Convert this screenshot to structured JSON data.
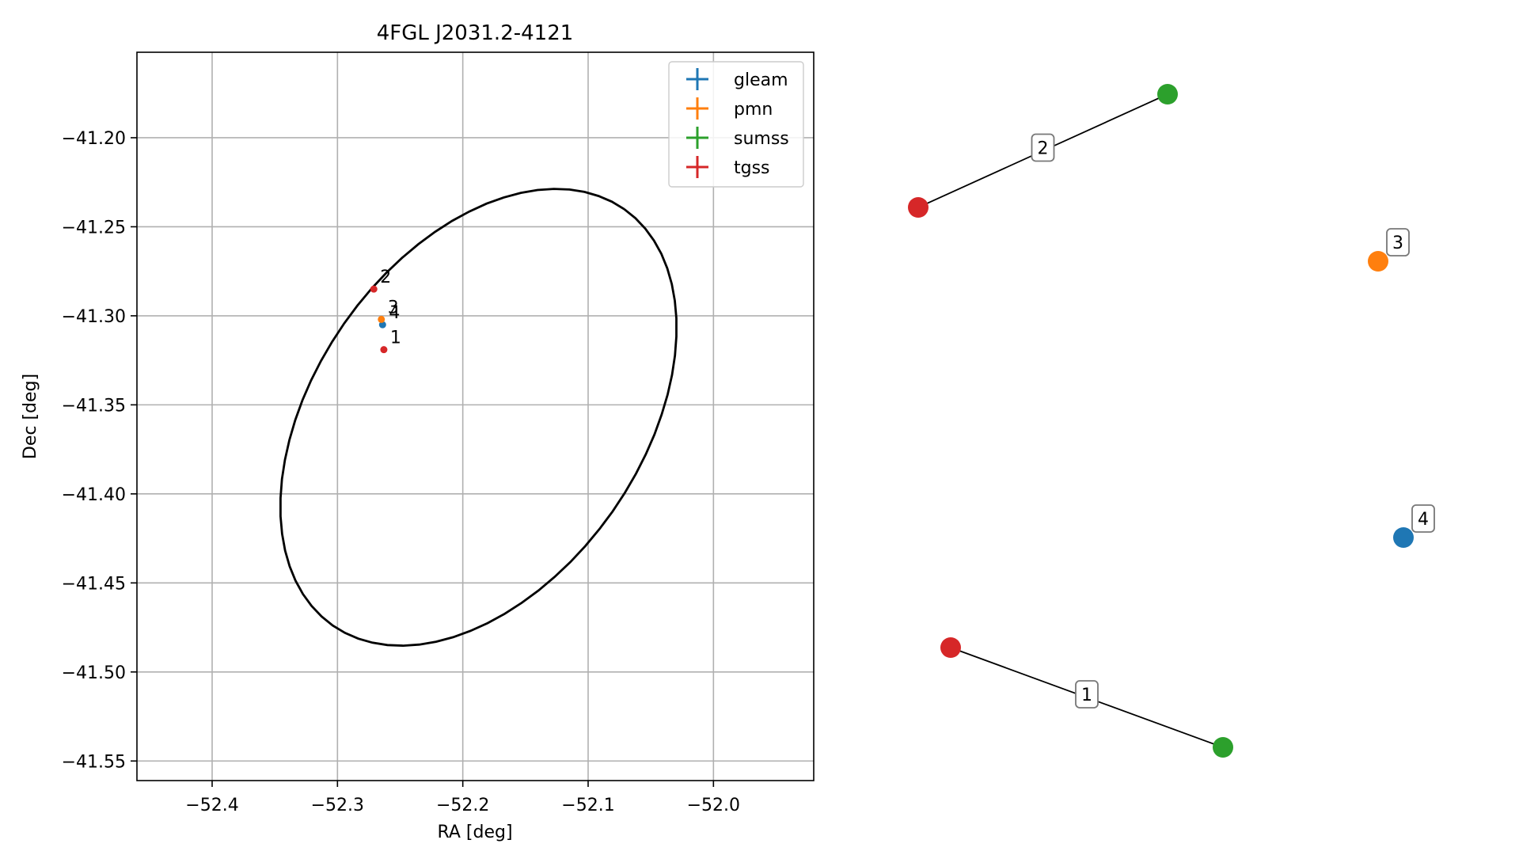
{
  "chart_data": [
    {
      "type": "scatter",
      "title": "4FGL J2031.2-4121",
      "xlabel": "RA [deg]",
      "ylabel": "Dec [deg]",
      "xlim": [
        -52.46,
        -51.92
      ],
      "ylim": [
        -41.561,
        -41.152
      ],
      "xticks": [
        {
          "value": -52.4,
          "label": "−52.4"
        },
        {
          "value": -52.3,
          "label": "−52.3"
        },
        {
          "value": -52.2,
          "label": "−52.2"
        },
        {
          "value": -52.1,
          "label": "−52.1"
        },
        {
          "value": -52.0,
          "label": "−52.0"
        }
      ],
      "yticks": [
        {
          "value": -41.2,
          "label": "−41.20"
        },
        {
          "value": -41.25,
          "label": "−41.25"
        },
        {
          "value": -41.3,
          "label": "−41.30"
        },
        {
          "value": -41.35,
          "label": "−41.35"
        },
        {
          "value": -41.4,
          "label": "−41.40"
        },
        {
          "value": -41.45,
          "label": "−41.45"
        },
        {
          "value": -41.5,
          "label": "−41.50"
        },
        {
          "value": -41.55,
          "label": "−41.55"
        }
      ],
      "grid": true,
      "legend_position": "top-right",
      "series": [
        {
          "name": "gleam",
          "color": "#1f77b4",
          "points": [
            {
              "x": -52.264,
              "y": -41.305
            }
          ]
        },
        {
          "name": "pmn",
          "color": "#ff7f0e",
          "points": [
            {
              "x": -52.265,
              "y": -41.302
            }
          ]
        },
        {
          "name": "sumss",
          "color": "#2ca02c",
          "points": []
        },
        {
          "name": "tgss",
          "color": "#d62728",
          "points": [
            {
              "x": -52.271,
              "y": -41.285
            },
            {
              "x": -52.263,
              "y": -41.319
            }
          ]
        }
      ],
      "point_labels": [
        {
          "text": "1",
          "x": -52.263,
          "y": -41.319
        },
        {
          "text": "2",
          "x": -52.271,
          "y": -41.285
        },
        {
          "text": "3",
          "x": -52.265,
          "y": -41.302
        },
        {
          "text": "4",
          "x": -52.264,
          "y": -41.305
        }
      ],
      "ellipse": {
        "center_ra": -52.1875,
        "center_dec": -41.357,
        "color": "#000000"
      }
    },
    {
      "type": "network",
      "nodes": [
        {
          "id": "tgss-a",
          "series": "tgss",
          "color": "#d62728"
        },
        {
          "id": "sumss-a",
          "series": "sumss",
          "color": "#2ca02c"
        },
        {
          "id": "tgss-b",
          "series": "tgss",
          "color": "#d62728"
        },
        {
          "id": "sumss-b",
          "series": "sumss",
          "color": "#2ca02c"
        },
        {
          "id": "pmn-3",
          "series": "pmn",
          "color": "#ff7f0e"
        },
        {
          "id": "gleam-4",
          "series": "gleam",
          "color": "#1f77b4"
        }
      ],
      "edges": [
        {
          "from": "tgss-a",
          "to": "sumss-a",
          "label": "2"
        },
        {
          "from": "tgss-b",
          "to": "sumss-b",
          "label": "1"
        }
      ],
      "node_labels": [
        {
          "node": "pmn-3",
          "label": "3"
        },
        {
          "node": "gleam-4",
          "label": "4"
        }
      ]
    }
  ]
}
